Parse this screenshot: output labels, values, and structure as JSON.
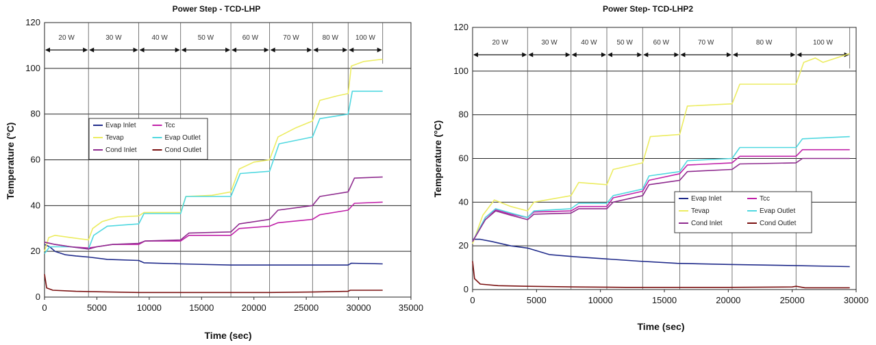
{
  "chart_data": [
    {
      "type": "line",
      "title": "Power Step - TCD-LHP",
      "xlabel": "Time (sec)",
      "ylabel": "Temperature (°C)",
      "xlim": [
        0,
        35000
      ],
      "ylim": [
        0,
        120
      ],
      "xticks": [
        0,
        5000,
        10000,
        15000,
        20000,
        25000,
        30000,
        35000
      ],
      "xtick_labels": [
        "0",
        "5000",
        "10000",
        "15000",
        "20000",
        "25000",
        "30000",
        "35000"
      ],
      "yticks": [
        0,
        20,
        40,
        60,
        80,
        100,
        120
      ],
      "grid": true,
      "legend_position": "middle-left",
      "legend_columns": 2,
      "power_steps": [
        {
          "label": "20 W",
          "start": 0,
          "end": 4200
        },
        {
          "label": "30 W",
          "start": 4200,
          "end": 9000
        },
        {
          "label": "40 W",
          "start": 9000,
          "end": 13000
        },
        {
          "label": "50 W",
          "start": 13000,
          "end": 17800
        },
        {
          "label": "60 W",
          "start": 17800,
          "end": 21500
        },
        {
          "label": "70 W",
          "start": 21500,
          "end": 25600
        },
        {
          "label": "80 W",
          "start": 25600,
          "end": 29000
        },
        {
          "label": "100 W",
          "start": 29000,
          "end": 32300
        }
      ],
      "series": [
        {
          "name": "Evap Inlet",
          "color": "#1f2a8a",
          "x": [
            0,
            500,
            1000,
            2000,
            3000,
            4200,
            6000,
            9000,
            9500,
            13000,
            17800,
            21500,
            25600,
            29000,
            29300,
            32300
          ],
          "y": [
            23,
            22,
            20,
            18.5,
            18,
            17.5,
            16.5,
            16,
            15,
            14.5,
            14,
            14,
            14,
            14,
            14.8,
            14.5
          ]
        },
        {
          "name": "Tcc",
          "color": "#c020a8",
          "x": [
            0,
            1000,
            2500,
            4200,
            5000,
            6500,
            9000,
            9600,
            13000,
            13800,
            17800,
            18600,
            21500,
            22300,
            25600,
            26300,
            29000,
            29600,
            32300
          ],
          "y": [
            24,
            23,
            22,
            21.5,
            22,
            23,
            23,
            24.5,
            24.5,
            27,
            27,
            30,
            31,
            32.5,
            34,
            36,
            38,
            41,
            41.5
          ]
        },
        {
          "name": "Tevap",
          "color": "#ecec60",
          "x": [
            0,
            400,
            1000,
            2500,
            4200,
            4600,
            5500,
            7000,
            9000,
            9500,
            13000,
            13500,
            16000,
            17800,
            18600,
            20000,
            21500,
            22300,
            24000,
            25600,
            26300,
            28000,
            29000,
            29300,
            30500,
            32300
          ],
          "y": [
            20,
            26,
            27,
            26,
            25,
            30,
            33,
            35,
            35.5,
            37,
            37,
            44,
            44.5,
            46,
            56,
            59,
            60,
            70,
            74,
            77,
            86,
            88,
            89,
            101,
            103,
            104
          ]
        },
        {
          "name": "Evap Outlet",
          "color": "#4fd8e0",
          "x": [
            0,
            500,
            2500,
            4200,
            4700,
            6000,
            9000,
            9500,
            13000,
            13500,
            17800,
            18700,
            21500,
            22400,
            25600,
            26300,
            29000,
            29400,
            32300
          ],
          "y": [
            19,
            22,
            22,
            21,
            27,
            31,
            32,
            36.5,
            36.5,
            44,
            44,
            54,
            55,
            67,
            70,
            78,
            80,
            90,
            90
          ]
        },
        {
          "name": "Cond Inlet",
          "color": "#8e2a8e",
          "x": [
            0,
            1000,
            2500,
            4200,
            5000,
            6500,
            9000,
            9600,
            13000,
            13800,
            17800,
            18600,
            21500,
            22300,
            25600,
            26300,
            29000,
            29600,
            32300
          ],
          "y": [
            24,
            23,
            22,
            21,
            22,
            23,
            23.5,
            24.5,
            25,
            28,
            28.5,
            32,
            34,
            38,
            40,
            44,
            46,
            52,
            52.5
          ]
        },
        {
          "name": "Cond Outlet",
          "color": "#7a1010",
          "x": [
            0,
            200,
            800,
            3000,
            9000,
            13000,
            17800,
            21500,
            25600,
            29000,
            29200,
            32300
          ],
          "y": [
            10,
            4,
            3,
            2.5,
            2,
            2,
            2,
            2,
            2.2,
            2.5,
            3,
            3
          ]
        }
      ]
    },
    {
      "type": "line",
      "title": "Power Step- TCD-LHP2",
      "xlabel": "Time (sec)",
      "ylabel": "Temperature (°C)",
      "xlim": [
        0,
        30000
      ],
      "ylim": [
        0,
        120
      ],
      "xticks": [
        0,
        5000,
        10000,
        15000,
        20000,
        25000,
        30000
      ],
      "xtick_labels": [
        "0",
        "5000",
        "10000",
        "15000",
        "20000",
        "25000",
        "30000"
      ],
      "yticks": [
        0,
        20,
        40,
        60,
        80,
        100,
        120
      ],
      "grid": true,
      "legend_position": "middle-right",
      "legend_columns": 2,
      "power_steps": [
        {
          "label": "20 W",
          "start": 0,
          "end": 4300
        },
        {
          "label": "30 W",
          "start": 4300,
          "end": 7700
        },
        {
          "label": "40 W",
          "start": 7700,
          "end": 10500
        },
        {
          "label": "50 W",
          "start": 10500,
          "end": 13300
        },
        {
          "label": "60 W",
          "start": 13300,
          "end": 16200
        },
        {
          "label": "70 W",
          "start": 16200,
          "end": 20300
        },
        {
          "label": "80 W",
          "start": 20300,
          "end": 25300
        },
        {
          "label": "100 W",
          "start": 25300,
          "end": 29500
        }
      ],
      "series": [
        {
          "name": "Evap Inlet",
          "color": "#1f2a8a",
          "x": [
            0,
            600,
            1500,
            3000,
            4300,
            6000,
            8000,
            10500,
            13000,
            16000,
            20000,
            25000,
            29500
          ],
          "y": [
            23,
            23,
            22,
            20,
            19,
            16,
            15,
            14,
            13,
            12,
            11.5,
            11,
            10.5
          ]
        },
        {
          "name": "Tcc",
          "color": "#c020a8",
          "x": [
            0,
            1000,
            1800,
            3000,
            4300,
            4800,
            7700,
            8300,
            10500,
            11000,
            13300,
            13800,
            16200,
            16800,
            20300,
            20900,
            25300,
            25800,
            29500
          ],
          "y": [
            22,
            33,
            36.5,
            34.5,
            33,
            35.5,
            36,
            38,
            38,
            42,
            45,
            50,
            53,
            57,
            58,
            61,
            61,
            64,
            64
          ]
        },
        {
          "name": "Tevap",
          "color": "#ecec60",
          "x": [
            0,
            800,
            1700,
            3000,
            4300,
            4800,
            7700,
            8300,
            10500,
            11000,
            13300,
            13900,
            16200,
            16800,
            20300,
            20900,
            25300,
            25900,
            26800,
            27400,
            29500
          ],
          "y": [
            21,
            34,
            41,
            38,
            36,
            40,
            43,
            49,
            48,
            55,
            58,
            70,
            71,
            84,
            85,
            94,
            94,
            104,
            106,
            104,
            108
          ]
        },
        {
          "name": "Evap Outlet",
          "color": "#4fd8e0",
          "x": [
            0,
            1000,
            1800,
            3000,
            4300,
            4800,
            7700,
            8300,
            10500,
            11000,
            13300,
            13800,
            16200,
            16800,
            20300,
            20900,
            25300,
            25800,
            29500
          ],
          "y": [
            22,
            33,
            37,
            35,
            33,
            36,
            37,
            39.5,
            39.5,
            43,
            46,
            52,
            54,
            59,
            60,
            65,
            65,
            69,
            70
          ]
        },
        {
          "name": "Cond Inlet",
          "color": "#8e2a8e",
          "x": [
            0,
            1000,
            1800,
            3000,
            4300,
            4800,
            7700,
            8300,
            10500,
            11000,
            13300,
            13800,
            16200,
            16800,
            20300,
            20900,
            25300,
            25800,
            29500
          ],
          "y": [
            22,
            32,
            36,
            34,
            32,
            34.5,
            35,
            37,
            37,
            40,
            43,
            48,
            50,
            54,
            55,
            57.5,
            58,
            60,
            60
          ]
        },
        {
          "name": "Cond Outlet",
          "color": "#7a1010",
          "x": [
            0,
            150,
            600,
            2000,
            4300,
            8000,
            12000,
            16000,
            20000,
            25000,
            25300,
            26000,
            29500
          ],
          "y": [
            13,
            5,
            2.5,
            1.8,
            1.5,
            1.2,
            1,
            1,
            1,
            1.2,
            1.5,
            0.8,
            0.8
          ]
        }
      ]
    }
  ]
}
